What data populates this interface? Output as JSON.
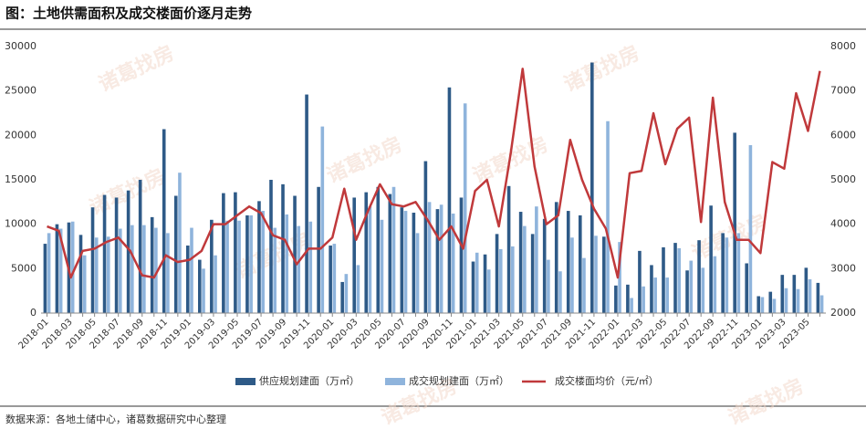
{
  "title": "图：土地供需面积及成交楼面价逐月走势",
  "source": "数据来源：各地土储中心，诸葛数据研究中心整理",
  "watermark": "诸葛找房",
  "chart_data": {
    "type": "bar-line",
    "categories": [
      "2018-01",
      null,
      "2018-03",
      null,
      "2018-05",
      null,
      "2018-07",
      null,
      "2018-09",
      null,
      "2018-11",
      null,
      "2019-01",
      null,
      "2019-03",
      null,
      "2019-05",
      null,
      "2019-07",
      null,
      "2019-09",
      null,
      "2019-11",
      null,
      "2020-01",
      null,
      "2020-03",
      null,
      "2020-05",
      null,
      "2020-07",
      null,
      "2020-09",
      null,
      "2020-11",
      null,
      "2021-01",
      null,
      "2021-03",
      null,
      "2021-05",
      null,
      "2021-07",
      null,
      "2021-09",
      null,
      "2021-11",
      null,
      "2022-01",
      null,
      "2022-03",
      null,
      "2022-05",
      null,
      "2022-07",
      null,
      "2022-09",
      null,
      "2022-11",
      null,
      "2023-01",
      null,
      "2023-03",
      null,
      "2023-05",
      null
    ],
    "series": [
      {
        "name": "供应规划建面（万㎡）",
        "color": "#2e5a87",
        "values": [
          7800,
          10000,
          10200,
          8800,
          11900,
          13300,
          13000,
          13800,
          15000,
          10800,
          20700,
          13200,
          7600,
          6000,
          10500,
          13500,
          13600,
          11000,
          12600,
          15000,
          14500,
          13200,
          24600,
          14200,
          7600,
          3500,
          13000,
          13600,
          14200,
          13400,
          11900,
          11300,
          17100,
          11700,
          25400,
          13000,
          5800,
          6600,
          8900,
          14300,
          11400,
          8900,
          10600,
          12500,
          11500,
          11000,
          28200,
          8600,
          3100,
          3200,
          7000,
          5400,
          7400,
          7900,
          4800,
          8200,
          12100,
          9000,
          20300,
          5600,
          1900,
          2400,
          4300,
          4300,
          5100,
          3400
        ]
      },
      {
        "name": "成交规划建面（万㎡）",
        "color": "#8fb4dc",
        "values": [
          9000,
          9500,
          10300,
          6500,
          8500,
          8600,
          9500,
          9900,
          9900,
          9600,
          9000,
          15800,
          9600,
          5000,
          6500,
          10400,
          10400,
          11000,
          11500,
          9600,
          11100,
          9800,
          10300,
          21000,
          7800,
          4400,
          5400,
          12000,
          10500,
          14200,
          11500,
          9000,
          12500,
          12200,
          11200,
          23600,
          6800,
          4900,
          7200,
          7500,
          9800,
          12000,
          6000,
          4700,
          8500,
          6200,
          8700,
          21600,
          8000,
          1700,
          3000,
          4000,
          4000,
          7300,
          5900,
          5100,
          6400,
          8500,
          9000,
          18900,
          1800,
          1600,
          2800,
          2700,
          3800,
          2000
        ]
      },
      {
        "name": "成交楼面均价（元/㎡）",
        "color": "#c0393b",
        "axis": "y2",
        "values": [
          3950,
          3850,
          2800,
          3400,
          3450,
          3600,
          3700,
          3400,
          2850,
          2800,
          3300,
          3150,
          3200,
          3400,
          4000,
          4000,
          4200,
          4400,
          4250,
          3750,
          3650,
          3100,
          3450,
          3450,
          3700,
          4800,
          3650,
          4300,
          4900,
          4450,
          4400,
          4500,
          4100,
          3650,
          3950,
          3450,
          4750,
          5000,
          3950,
          5600,
          7500,
          5300,
          4000,
          4200,
          5900,
          5000,
          4350,
          3900,
          2800,
          5150,
          5200,
          6500,
          5350,
          6150,
          6400,
          4050,
          6850,
          4500,
          3650,
          3650,
          3350,
          5400,
          5250,
          6950,
          6100,
          7450
        ]
      }
    ],
    "ylim": [
      0,
      30000
    ],
    "yticks": [
      0,
      5000,
      10000,
      15000,
      20000,
      25000,
      30000
    ],
    "y2lim": [
      2000,
      8000
    ],
    "y2ticks": [
      2000,
      3000,
      4000,
      5000,
      6000,
      7000,
      8000
    ],
    "legend": "bottom"
  }
}
